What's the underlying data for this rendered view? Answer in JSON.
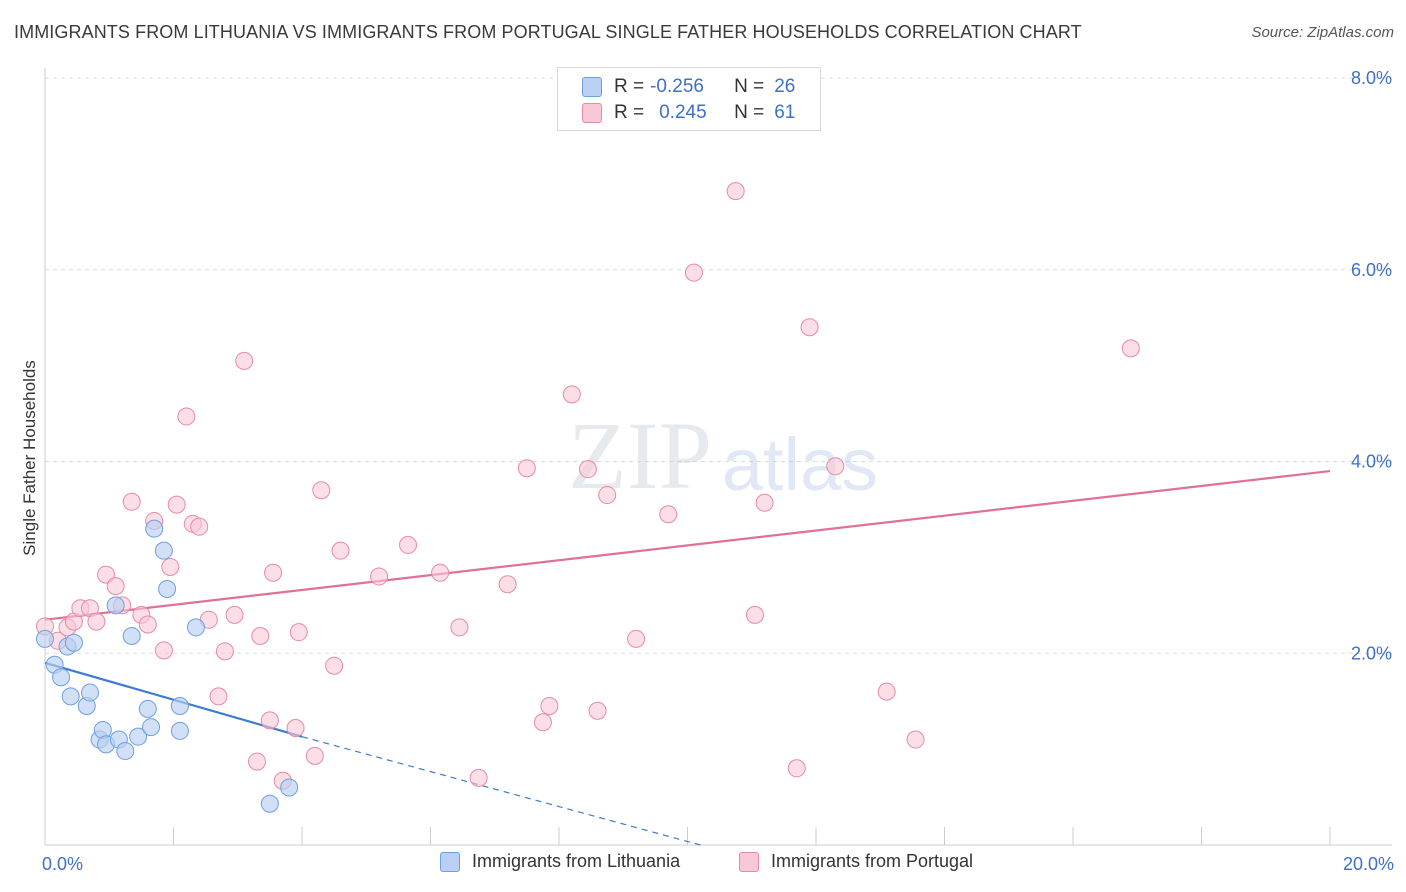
{
  "title": "IMMIGRANTS FROM LITHUANIA VS IMMIGRANTS FROM PORTUGAL SINGLE FATHER HOUSEHOLDS CORRELATION CHART",
  "source": "Source: ZipAtlas.com",
  "watermark": {
    "zip": "ZIP",
    "atlas": "atlas"
  },
  "colors": {
    "lithuania_fill": "#b9d0f3",
    "lithuania_stroke": "#6e9fe0",
    "lithuania_line": "#3d7bd4",
    "portugal_fill": "#f8c8d6",
    "portugal_stroke": "#e88aa8",
    "portugal_line": "#e0709a",
    "axis_label": "#3f6fc7",
    "grid": "#dcdcdc"
  },
  "legend_top": {
    "rows": [
      {
        "r_label": "R =",
        "r_value": "-0.256",
        "n_label": "N =",
        "n_value": "26"
      },
      {
        "r_label": "R =",
        "r_value": "0.245",
        "n_label": "N =",
        "n_value": "61"
      }
    ]
  },
  "chart_data": {
    "type": "scatter",
    "title": "IMMIGRANTS FROM LITHUANIA VS IMMIGRANTS FROM PORTUGAL SINGLE FATHER HOUSEHOLDS CORRELATION CHART",
    "xlabel": "",
    "ylabel": "Single Father Households",
    "xlim": [
      0,
      20
    ],
    "ylim": [
      0,
      8
    ],
    "x_tick_labels": [
      "0.0%",
      "20.0%"
    ],
    "y_ticks": [
      2,
      4,
      6,
      8
    ],
    "y_tick_labels": [
      "2.0%",
      "4.0%",
      "6.0%",
      "8.0%"
    ],
    "legend_position": "bottom-center",
    "series": [
      {
        "name": "Immigrants from Lithuania",
        "r": -0.256,
        "n": 26,
        "points": [
          [
            0.0,
            2.15
          ],
          [
            0.15,
            1.88
          ],
          [
            0.25,
            1.75
          ],
          [
            0.35,
            2.07
          ],
          [
            0.4,
            1.55
          ],
          [
            0.45,
            2.11
          ],
          [
            0.65,
            1.45
          ],
          [
            0.7,
            1.59
          ],
          [
            0.85,
            1.1
          ],
          [
            0.9,
            1.2
          ],
          [
            0.95,
            1.05
          ],
          [
            1.1,
            2.5
          ],
          [
            1.15,
            1.1
          ],
          [
            1.25,
            0.98
          ],
          [
            1.35,
            2.18
          ],
          [
            1.45,
            1.13
          ],
          [
            1.6,
            1.42
          ],
          [
            1.65,
            1.23
          ],
          [
            1.7,
            3.3
          ],
          [
            1.85,
            3.07
          ],
          [
            1.9,
            2.67
          ],
          [
            2.1,
            1.45
          ],
          [
            2.1,
            1.19
          ],
          [
            2.35,
            2.27
          ],
          [
            3.5,
            0.43
          ],
          [
            3.8,
            0.6
          ]
        ],
        "trend_solid": [
          [
            0.0,
            1.9
          ],
          [
            4.0,
            1.13
          ]
        ],
        "trend_dashed": [
          [
            4.0,
            1.13
          ],
          [
            10.2,
            0.0
          ]
        ]
      },
      {
        "name": "Immigrants from Portugal",
        "r": 0.245,
        "n": 61,
        "points": [
          [
            0.0,
            2.28
          ],
          [
            0.2,
            2.13
          ],
          [
            0.35,
            2.27
          ],
          [
            0.45,
            2.33
          ],
          [
            0.55,
            2.47
          ],
          [
            0.7,
            2.47
          ],
          [
            0.8,
            2.33
          ],
          [
            0.95,
            2.82
          ],
          [
            1.1,
            2.7
          ],
          [
            1.2,
            2.5
          ],
          [
            1.35,
            3.58
          ],
          [
            1.5,
            2.4
          ],
          [
            1.6,
            2.3
          ],
          [
            1.7,
            3.38
          ],
          [
            1.85,
            2.03
          ],
          [
            1.95,
            2.9
          ],
          [
            2.05,
            3.55
          ],
          [
            2.2,
            4.47
          ],
          [
            2.3,
            3.35
          ],
          [
            2.4,
            3.32
          ],
          [
            2.55,
            2.35
          ],
          [
            2.7,
            1.55
          ],
          [
            2.8,
            2.02
          ],
          [
            2.95,
            2.4
          ],
          [
            3.1,
            5.05
          ],
          [
            3.3,
            0.87
          ],
          [
            3.35,
            2.18
          ],
          [
            3.5,
            1.3
          ],
          [
            3.55,
            2.84
          ],
          [
            3.7,
            0.67
          ],
          [
            3.9,
            1.22
          ],
          [
            3.95,
            2.22
          ],
          [
            4.2,
            0.93
          ],
          [
            4.3,
            3.7
          ],
          [
            4.5,
            1.87
          ],
          [
            4.6,
            3.07
          ],
          [
            5.2,
            2.8
          ],
          [
            5.65,
            3.13
          ],
          [
            6.15,
            2.84
          ],
          [
            6.45,
            2.27
          ],
          [
            6.75,
            0.7
          ],
          [
            7.2,
            2.72
          ],
          [
            7.5,
            3.93
          ],
          [
            7.75,
            1.28
          ],
          [
            7.85,
            1.45
          ],
          [
            8.2,
            4.7
          ],
          [
            8.45,
            3.92
          ],
          [
            8.6,
            1.4
          ],
          [
            8.75,
            3.65
          ],
          [
            9.2,
            2.15
          ],
          [
            9.7,
            3.45
          ],
          [
            10.1,
            5.97
          ],
          [
            10.75,
            6.82
          ],
          [
            11.05,
            2.4
          ],
          [
            11.2,
            3.57
          ],
          [
            11.7,
            0.8
          ],
          [
            11.9,
            5.4
          ],
          [
            12.3,
            3.95
          ],
          [
            13.1,
            1.6
          ],
          [
            13.55,
            1.1
          ],
          [
            16.9,
            5.18
          ]
        ],
        "trend_solid": [
          [
            0.0,
            2.35
          ],
          [
            20.0,
            3.9
          ]
        ]
      }
    ]
  },
  "legend_bottom": {
    "items": [
      "Immigrants from Lithuania",
      "Immigrants from Portugal"
    ]
  }
}
